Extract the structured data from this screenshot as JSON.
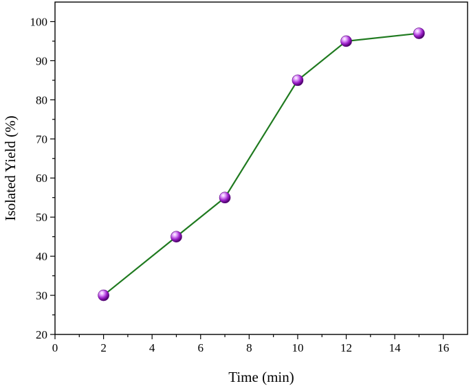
{
  "chart_data": {
    "type": "line",
    "title": "",
    "xlabel": "Time (min)",
    "ylabel": "Isolated Yield (%)",
    "xlim": [
      0,
      17
    ],
    "ylim": [
      20,
      105
    ],
    "x_ticks": [
      0,
      2,
      4,
      6,
      8,
      10,
      12,
      14,
      16
    ],
    "y_ticks": [
      20,
      30,
      40,
      50,
      60,
      70,
      80,
      90,
      100
    ],
    "grid": false,
    "legend": "none",
    "series": [
      {
        "x": [
          2,
          5,
          7,
          10,
          12,
          15
        ],
        "y": [
          30,
          45,
          55,
          85,
          95,
          97
        ],
        "line_color": "#1f7a1f",
        "marker_color": "#9b1fc9",
        "marker": "sphere"
      }
    ]
  }
}
